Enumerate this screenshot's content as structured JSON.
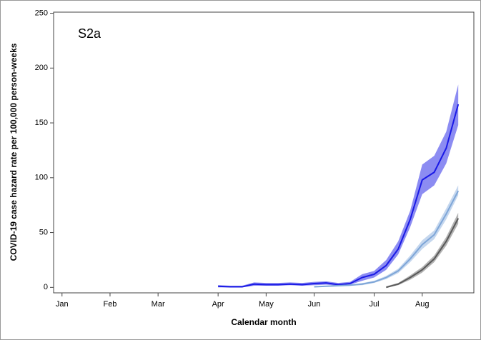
{
  "chart_data": {
    "type": "line",
    "annotation": "S2a",
    "x_label": "Calendar month",
    "y_label": "COVID-19 case hazard rate per 100,000 person-weeks",
    "xlim": [
      -0.7,
      34.3
    ],
    "xticks": [
      {
        "value": 0,
        "label": "Jan"
      },
      {
        "value": 4,
        "label": "Feb"
      },
      {
        "value": 8,
        "label": "Mar"
      },
      {
        "value": 13,
        "label": "Apr"
      },
      {
        "value": 17,
        "label": "May"
      },
      {
        "value": 21,
        "label": "Jun"
      },
      {
        "value": 26,
        "label": "Jul"
      },
      {
        "value": 30,
        "label": "Aug"
      }
    ],
    "ylim": [
      -5,
      251
    ],
    "yticks": [
      0,
      50,
      100,
      150,
      200,
      250
    ],
    "series": [
      {
        "color": "#1a1ae6",
        "band_color": "#8c8cf2",
        "x": [
          13,
          14,
          15,
          16,
          17,
          18,
          19,
          20,
          21,
          22,
          23,
          24,
          25,
          26,
          27,
          28,
          29,
          30,
          31,
          32,
          33
        ],
        "values": [
          1,
          0.5,
          0.5,
          3,
          2.5,
          2.5,
          3,
          2.5,
          3.5,
          4,
          2.5,
          3.5,
          9,
          12,
          20,
          35,
          62,
          98,
          105,
          127,
          167
        ],
        "lower": [
          0,
          0,
          0,
          1.5,
          1.5,
          1.5,
          2,
          1.5,
          2,
          2.5,
          1.5,
          2.5,
          6,
          9,
          16,
          30,
          55,
          85,
          93,
          113,
          148
        ],
        "upper": [
          2,
          1.5,
          1.5,
          4.5,
          4,
          4,
          4.5,
          4,
          5,
          5.5,
          4,
          5,
          12,
          15,
          25,
          42,
          70,
          112,
          120,
          142,
          185
        ]
      },
      {
        "color": "#7ea6d8",
        "band_color": "#c5d7ee",
        "x": [
          21,
          22,
          23,
          24,
          25,
          26,
          27,
          28,
          29,
          30,
          31,
          32,
          33
        ],
        "values": [
          0.5,
          1,
          1.5,
          2,
          3,
          5,
          9,
          15,
          26,
          39,
          48,
          67,
          88
        ],
        "lower": [
          0,
          0.5,
          1,
          1.5,
          2,
          4,
          7.5,
          13,
          23,
          35,
          44,
          62,
          84
        ],
        "upper": [
          1,
          1.5,
          2,
          2.5,
          4,
          6,
          10.5,
          17,
          29,
          43,
          52,
          72,
          93
        ]
      },
      {
        "color": "#595959",
        "band_color": "#b3b3b3",
        "x": [
          27,
          28,
          29,
          30,
          31,
          32,
          33
        ],
        "values": [
          0,
          3,
          9,
          16,
          26,
          42,
          63
        ],
        "lower": [
          0,
          2,
          7,
          13.5,
          23,
          38,
          58
        ],
        "upper": [
          1,
          4,
          11,
          18.5,
          29,
          46,
          68
        ]
      }
    ]
  }
}
